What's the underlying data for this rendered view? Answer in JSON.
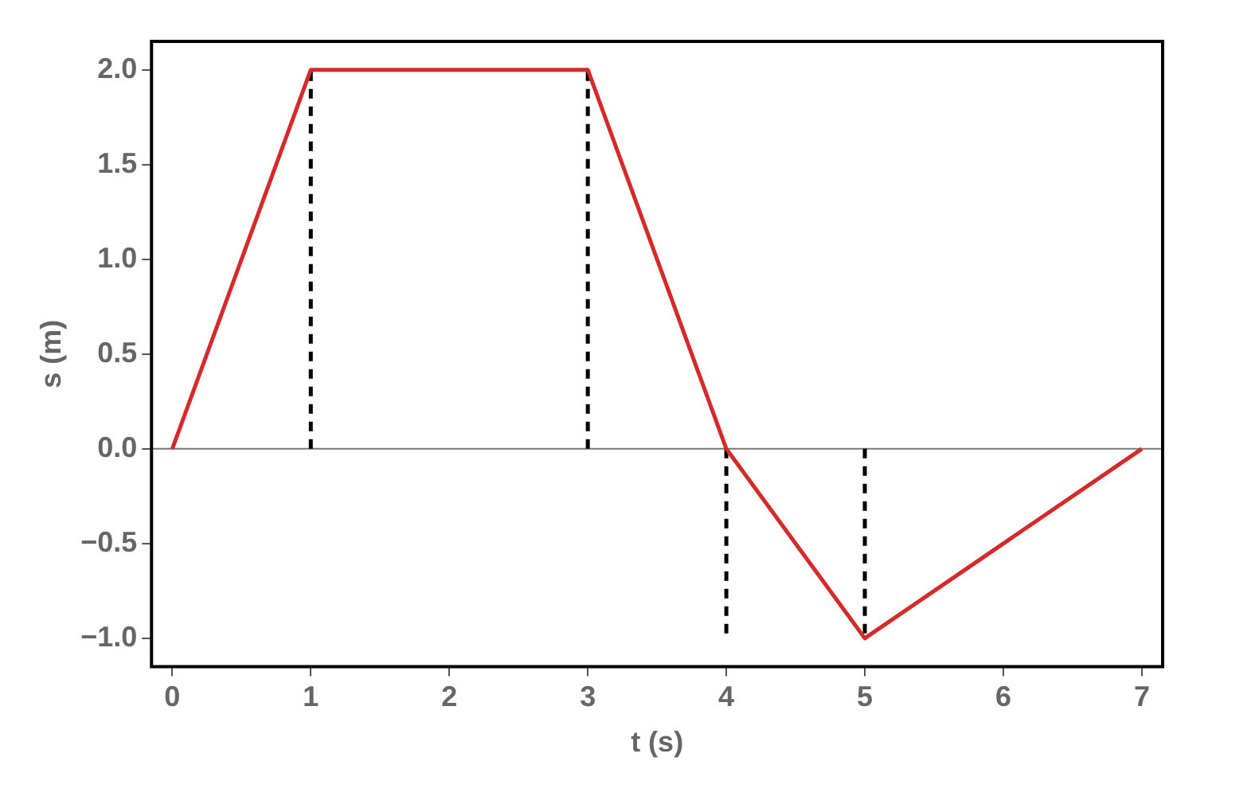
{
  "chart_data": {
    "type": "line",
    "xlabel": "t (s)",
    "ylabel": "s (m)",
    "xlim": [
      -0.15,
      7.15
    ],
    "ylim": [
      -1.15,
      2.15
    ],
    "xticks": [
      0,
      1,
      2,
      3,
      4,
      5,
      6,
      7
    ],
    "yticks": [
      {
        "value": -1,
        "label": "−1.0"
      },
      {
        "value": -0.5,
        "label": "−0.5"
      },
      {
        "value": 0,
        "label": "0.0"
      },
      {
        "value": 0.5,
        "label": "0.5"
      },
      {
        "value": 1,
        "label": "1.0"
      },
      {
        "value": 1.5,
        "label": "1.5"
      },
      {
        "value": 2,
        "label": "2.0"
      }
    ],
    "series": [
      {
        "x": [
          0,
          1,
          3,
          4,
          5,
          7
        ],
        "values": [
          0,
          2,
          2,
          0,
          -1,
          0
        ],
        "color": "#d42a2a",
        "line_style": "solid"
      },
      {
        "x": [
          1,
          1
        ],
        "values": [
          0,
          2
        ],
        "color": "#000000",
        "line_style": "dashed"
      },
      {
        "x": [
          3,
          3
        ],
        "values": [
          0,
          2
        ],
        "color": "#000000",
        "line_style": "dashed"
      },
      {
        "x": [
          4,
          4
        ],
        "values": [
          0,
          -1
        ],
        "color": "#000000",
        "line_style": "dashed"
      },
      {
        "x": [
          5,
          5
        ],
        "values": [
          0,
          -1
        ],
        "color": "#000000",
        "line_style": "dashed"
      }
    ],
    "ref_lines": [
      {
        "axis": "y",
        "value": 0,
        "color": "#777777"
      }
    ],
    "marker": "none",
    "legend": false
  }
}
